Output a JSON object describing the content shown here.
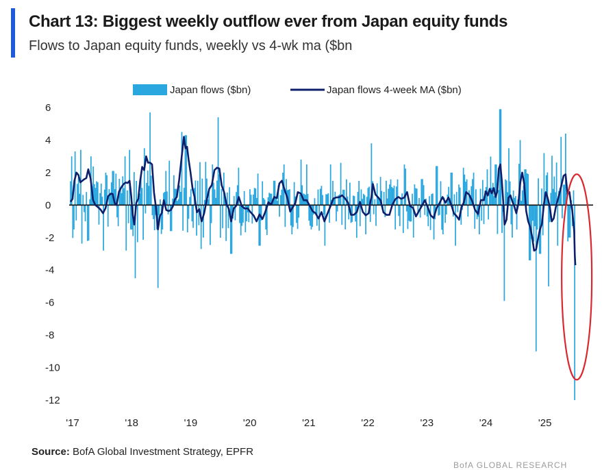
{
  "title": "Chart 13: Biggest weekly outflow ever from Japan equity funds",
  "subtitle": "Flows to Japan equity funds, weekly vs 4-wk ma ($bn",
  "source_label": "Source:",
  "source_text": "BofA Global Investment Strategy, EPFR",
  "footer_mark": "BofA GLOBAL RESEARCH",
  "colors": {
    "accent": "#1f5bd6",
    "bars": "#2aa7df",
    "ma_line": "#0d1f6b",
    "highlight": "#d9282f"
  },
  "chart_data": {
    "type": "bar",
    "title": "Chart 13: Biggest weekly outflow ever from Japan equity funds",
    "ylabel": "$bn",
    "ylim": [
      -12.5,
      6.5
    ],
    "yticks": [
      6,
      4,
      2,
      0,
      -2,
      -4,
      -6,
      -8,
      -10,
      -12
    ],
    "ytick_labels": [
      "6",
      "4",
      "2",
      "0",
      "-2",
      "-4",
      "-6",
      "-8",
      "-10",
      "-12"
    ],
    "xlim": [
      2017.0,
      2025.85
    ],
    "xticks": [
      2017,
      2018,
      2019,
      2020,
      2021,
      2022,
      2023,
      2024,
      2025
    ],
    "xtick_labels": [
      "'17",
      "'18",
      "'19",
      "'20",
      "'21",
      "'22",
      "'23",
      "'24",
      "'25"
    ],
    "legend_position": "top",
    "series": [
      {
        "name": "Japan flows ($bn)",
        "kind": "bar",
        "color": "#2aa7df"
      },
      {
        "name": "Japan flows 4-week MA ($bn)",
        "kind": "line",
        "color": "#0d1f6b"
      }
    ],
    "key_points": [
      {
        "x": 2017.02,
        "y": 3.0
      },
      {
        "x": 2017.05,
        "y": -1.5
      },
      {
        "x": 2017.08,
        "y": 3.3
      },
      {
        "x": 2017.18,
        "y": 3.4
      },
      {
        "x": 2017.25,
        "y": -1.0
      },
      {
        "x": 2017.35,
        "y": 3.0
      },
      {
        "x": 2017.48,
        "y": -1.2
      },
      {
        "x": 2017.55,
        "y": -2.8
      },
      {
        "x": 2017.72,
        "y": 2.1
      },
      {
        "x": 2017.8,
        "y": -1.3
      },
      {
        "x": 2017.92,
        "y": 3.0
      },
      {
        "x": 2018.0,
        "y": 3.4
      },
      {
        "x": 2018.03,
        "y": -1.5
      },
      {
        "x": 2018.1,
        "y": -4.5
      },
      {
        "x": 2018.25,
        "y": 3.5
      },
      {
        "x": 2018.35,
        "y": 5.7
      },
      {
        "x": 2018.48,
        "y": -5.1
      },
      {
        "x": 2018.55,
        "y": -1.5
      },
      {
        "x": 2018.62,
        "y": 2.1
      },
      {
        "x": 2018.7,
        "y": -1.6
      },
      {
        "x": 2018.78,
        "y": 1.0
      },
      {
        "x": 2018.88,
        "y": 4.5
      },
      {
        "x": 2018.95,
        "y": 4.3
      },
      {
        "x": 2019.05,
        "y": -1.0
      },
      {
        "x": 2019.15,
        "y": 1.5
      },
      {
        "x": 2019.25,
        "y": -2.0
      },
      {
        "x": 2019.4,
        "y": 2.5
      },
      {
        "x": 2019.5,
        "y": 5.4
      },
      {
        "x": 2019.6,
        "y": 2.0
      },
      {
        "x": 2019.72,
        "y": -3.0
      },
      {
        "x": 2019.85,
        "y": 2.3
      },
      {
        "x": 2019.98,
        "y": -1.0
      },
      {
        "x": 2020.2,
        "y": -2.5
      },
      {
        "x": 2020.3,
        "y": -1.5
      },
      {
        "x": 2020.45,
        "y": 1.5
      },
      {
        "x": 2020.62,
        "y": 2.5
      },
      {
        "x": 2020.75,
        "y": -1.8
      },
      {
        "x": 2020.9,
        "y": 2.8
      },
      {
        "x": 2021.0,
        "y": 2.5
      },
      {
        "x": 2021.08,
        "y": -1.5
      },
      {
        "x": 2021.3,
        "y": -2.5
      },
      {
        "x": 2021.4,
        "y": 2.5
      },
      {
        "x": 2021.5,
        "y": -1.0
      },
      {
        "x": 2021.58,
        "y": 2.6
      },
      {
        "x": 2021.65,
        "y": -1.5
      },
      {
        "x": 2021.9,
        "y": -1.3
      },
      {
        "x": 2022.0,
        "y": -1.8
      },
      {
        "x": 2022.1,
        "y": 3.8
      },
      {
        "x": 2022.35,
        "y": 1.5
      },
      {
        "x": 2022.5,
        "y": -1.5
      },
      {
        "x": 2022.65,
        "y": 2.5
      },
      {
        "x": 2022.8,
        "y": -2.0
      },
      {
        "x": 2022.95,
        "y": 1.6
      },
      {
        "x": 2023.05,
        "y": -1.3
      },
      {
        "x": 2023.2,
        "y": 2.4
      },
      {
        "x": 2023.3,
        "y": -1.8
      },
      {
        "x": 2023.45,
        "y": 2.0
      },
      {
        "x": 2023.52,
        "y": -2.5
      },
      {
        "x": 2023.65,
        "y": 2.3
      },
      {
        "x": 2023.8,
        "y": 1.6
      },
      {
        "x": 2023.92,
        "y": -1.8
      },
      {
        "x": 2024.05,
        "y": 2.2
      },
      {
        "x": 2024.2,
        "y": 2.5
      },
      {
        "x": 2024.28,
        "y": 5.9
      },
      {
        "x": 2024.35,
        "y": -5.9
      },
      {
        "x": 2024.42,
        "y": 3.5
      },
      {
        "x": 2024.48,
        "y": -2.0
      },
      {
        "x": 2024.55,
        "y": -1.5
      },
      {
        "x": 2024.62,
        "y": 4.0
      },
      {
        "x": 2024.7,
        "y": 2.2
      },
      {
        "x": 2024.78,
        "y": -3.4
      },
      {
        "x": 2024.88,
        "y": -9.0
      },
      {
        "x": 2024.95,
        "y": -3.0
      },
      {
        "x": 2025.02,
        "y": 3.2
      },
      {
        "x": 2025.1,
        "y": -5.0
      },
      {
        "x": 2025.18,
        "y": 1.0
      },
      {
        "x": 2025.25,
        "y": -2.5
      },
      {
        "x": 2025.3,
        "y": 4.2
      },
      {
        "x": 2025.38,
        "y": 4.4
      },
      {
        "x": 2025.45,
        "y": -2.0
      },
      {
        "x": 2025.55,
        "y": -12.0
      }
    ],
    "ma_key_points": [
      {
        "x": 2017.0,
        "y": 0.2
      },
      {
        "x": 2017.1,
        "y": 2.0
      },
      {
        "x": 2017.2,
        "y": 1.5
      },
      {
        "x": 2017.3,
        "y": 2.2
      },
      {
        "x": 2017.42,
        "y": 0.0
      },
      {
        "x": 2017.55,
        "y": -0.5
      },
      {
        "x": 2017.68,
        "y": 0.7
      },
      {
        "x": 2017.78,
        "y": 0.0
      },
      {
        "x": 2017.9,
        "y": 1.3
      },
      {
        "x": 2018.0,
        "y": 1.5
      },
      {
        "x": 2018.08,
        "y": -1.2
      },
      {
        "x": 2018.18,
        "y": 1.5
      },
      {
        "x": 2018.28,
        "y": 3.0
      },
      {
        "x": 2018.38,
        "y": 2.5
      },
      {
        "x": 2018.48,
        "y": -1.5
      },
      {
        "x": 2018.58,
        "y": 0.3
      },
      {
        "x": 2018.7,
        "y": -0.3
      },
      {
        "x": 2018.8,
        "y": 0.5
      },
      {
        "x": 2018.92,
        "y": 4.2
      },
      {
        "x": 2019.0,
        "y": 2.8
      },
      {
        "x": 2019.1,
        "y": 0.5
      },
      {
        "x": 2019.22,
        "y": -1.0
      },
      {
        "x": 2019.35,
        "y": 1.0
      },
      {
        "x": 2019.48,
        "y": 2.3
      },
      {
        "x": 2019.6,
        "y": 0.8
      },
      {
        "x": 2019.72,
        "y": -1.0
      },
      {
        "x": 2019.85,
        "y": 0.5
      },
      {
        "x": 2020.0,
        "y": -0.2
      },
      {
        "x": 2020.15,
        "y": -1.0
      },
      {
        "x": 2020.3,
        "y": -0.4
      },
      {
        "x": 2020.45,
        "y": 0.5
      },
      {
        "x": 2020.58,
        "y": 1.5
      },
      {
        "x": 2020.72,
        "y": -0.4
      },
      {
        "x": 2020.85,
        "y": 0.8
      },
      {
        "x": 2021.0,
        "y": 0.3
      },
      {
        "x": 2021.15,
        "y": -0.5
      },
      {
        "x": 2021.3,
        "y": -1.0
      },
      {
        "x": 2021.45,
        "y": 0.4
      },
      {
        "x": 2021.6,
        "y": 0.6
      },
      {
        "x": 2021.75,
        "y": -0.6
      },
      {
        "x": 2021.9,
        "y": 0.2
      },
      {
        "x": 2022.05,
        "y": -0.5
      },
      {
        "x": 2022.12,
        "y": 1.3
      },
      {
        "x": 2022.25,
        "y": 0.3
      },
      {
        "x": 2022.4,
        "y": -0.6
      },
      {
        "x": 2022.55,
        "y": 0.5
      },
      {
        "x": 2022.7,
        "y": 0.8
      },
      {
        "x": 2022.85,
        "y": -0.7
      },
      {
        "x": 2023.0,
        "y": 0.3
      },
      {
        "x": 2023.15,
        "y": -0.8
      },
      {
        "x": 2023.3,
        "y": 0.5
      },
      {
        "x": 2023.45,
        "y": 0.0
      },
      {
        "x": 2023.58,
        "y": -0.9
      },
      {
        "x": 2023.7,
        "y": 0.8
      },
      {
        "x": 2023.85,
        "y": -0.3
      },
      {
        "x": 2024.0,
        "y": 0.3
      },
      {
        "x": 2024.1,
        "y": 1.0
      },
      {
        "x": 2024.2,
        "y": 0.5
      },
      {
        "x": 2024.28,
        "y": 2.5
      },
      {
        "x": 2024.35,
        "y": -1.2
      },
      {
        "x": 2024.45,
        "y": 0.6
      },
      {
        "x": 2024.55,
        "y": -0.5
      },
      {
        "x": 2024.65,
        "y": 2.0
      },
      {
        "x": 2024.75,
        "y": -1.0
      },
      {
        "x": 2024.85,
        "y": -2.8
      },
      {
        "x": 2024.95,
        "y": -1.5
      },
      {
        "x": 2025.05,
        "y": 0.8
      },
      {
        "x": 2025.15,
        "y": -1.0
      },
      {
        "x": 2025.25,
        "y": 0.3
      },
      {
        "x": 2025.35,
        "y": 1.8
      },
      {
        "x": 2025.45,
        "y": 0.8
      },
      {
        "x": 2025.52,
        "y": -1.2
      },
      {
        "x": 2025.55,
        "y": -3.7
      }
    ],
    "annotation": {
      "type": "ellipse",
      "color": "#d9282f",
      "center_x": 2025.55,
      "center_y": -4.0,
      "note": "highlights record weekly outflow"
    }
  }
}
